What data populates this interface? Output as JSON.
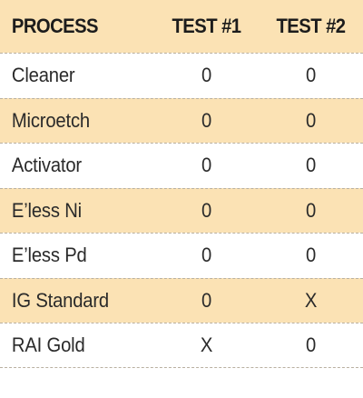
{
  "table": {
    "headers": [
      "PROCESS",
      "TEST #1",
      "TEST #2"
    ],
    "rows": [
      {
        "process": "Cleaner",
        "test1": "0",
        "test2": "0"
      },
      {
        "process": "Microetch",
        "test1": "0",
        "test2": "0"
      },
      {
        "process": "Activator",
        "test1": "0",
        "test2": "0"
      },
      {
        "process": "E’less Ni",
        "test1": "0",
        "test2": "0"
      },
      {
        "process": "E’less Pd",
        "test1": "0",
        "test2": "0"
      },
      {
        "process": "IG Standard",
        "test1": "0",
        "test2": "X"
      },
      {
        "process": "RAI Gold",
        "test1": "X",
        "test2": "0"
      }
    ]
  },
  "colors": {
    "header_bg": "#fbe2b4",
    "alt_row_bg": "#fbe2b4",
    "divider": "#b9b0a1"
  }
}
